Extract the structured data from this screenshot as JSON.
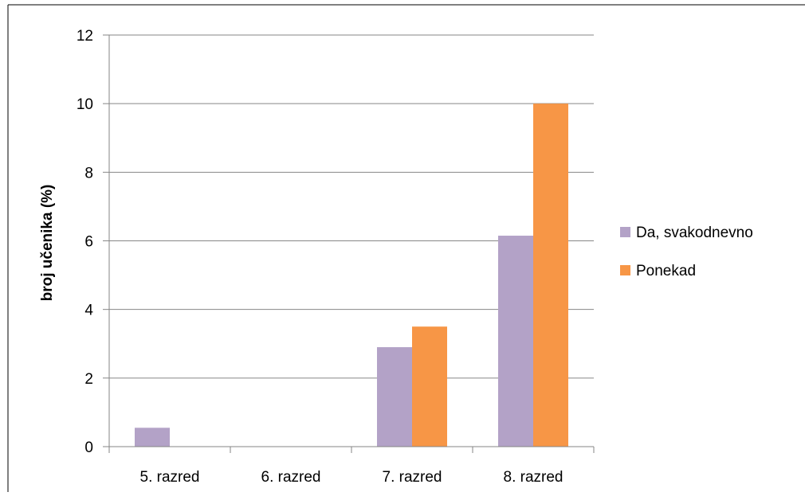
{
  "chart_data": {
    "type": "bar",
    "title": "",
    "xlabel": "",
    "ylabel": "broj učenika (%)",
    "categories": [
      "5. razred",
      "6. razred",
      "7. razred",
      "8. razred"
    ],
    "series": [
      {
        "name": "Da, svakodnevno",
        "color": "#b3a2c7",
        "values": [
          0.55,
          0,
          2.9,
          6.15
        ]
      },
      {
        "name": "Ponekad",
        "color": "#f79646",
        "values": [
          0,
          0,
          3.5,
          10
        ]
      }
    ],
    "ylim": [
      0,
      12
    ],
    "yticks": [
      0,
      2,
      4,
      6,
      8,
      10,
      12
    ],
    "grid": true,
    "legend_position": "right"
  }
}
